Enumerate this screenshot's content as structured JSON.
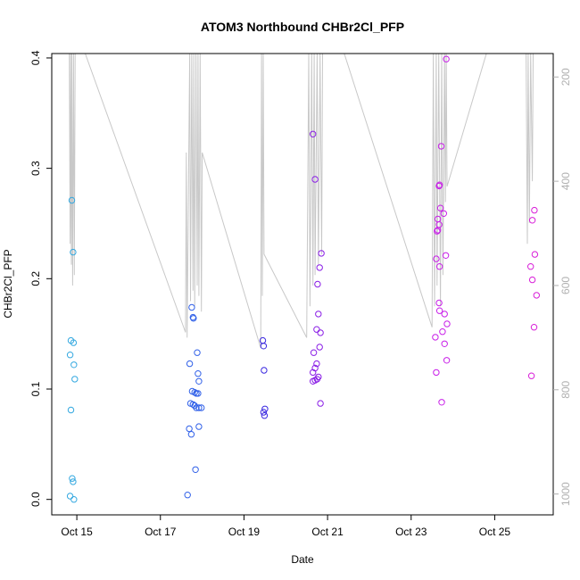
{
  "chart_data": {
    "type": "scatter",
    "title": "ATOM3 Northbound CHBr2Cl_PFP",
    "xlabel": "Date",
    "ylabel": "CHBr2Cl_PFP",
    "x_ticks": [
      {
        "value": 14.8,
        "label": "Oct 15"
      },
      {
        "value": 16.8,
        "label": "Oct 17"
      },
      {
        "value": 18.8,
        "label": "Oct 19"
      },
      {
        "value": 20.8,
        "label": "Oct 21"
      },
      {
        "value": 22.8,
        "label": "Oct 23"
      },
      {
        "value": 24.8,
        "label": "Oct 25"
      }
    ],
    "xlim": [
      14.2,
      26.2
    ],
    "ylim": [
      -0.014,
      0.404
    ],
    "y_ticks": [
      0.0,
      0.1,
      0.2,
      0.3,
      0.4
    ],
    "y_tick_labels": [
      "0.0",
      "0.1",
      "0.2",
      "0.3",
      "0.4"
    ],
    "right_axis": {
      "lim": [
        1040,
        155
      ],
      "ticks": [
        200,
        400,
        600,
        800,
        1000
      ],
      "tick_labels": [
        "200",
        "400",
        "600",
        "800",
        "1000"
      ],
      "color": "#b0b0b0"
    },
    "series": [
      {
        "color": "#33a8e0",
        "points": [
          [
            14.68,
            0.271
          ],
          [
            14.71,
            0.224
          ],
          [
            14.66,
            0.144
          ],
          [
            14.72,
            0.142
          ],
          [
            14.64,
            0.131
          ],
          [
            14.73,
            0.122
          ],
          [
            14.75,
            0.109
          ],
          [
            14.66,
            0.081
          ],
          [
            14.69,
            0.019
          ],
          [
            14.71,
            0.016
          ],
          [
            14.64,
            0.003
          ],
          [
            14.73,
            0.0
          ]
        ]
      },
      {
        "color": "#3060e8",
        "points": [
          [
            17.55,
            0.174
          ],
          [
            17.58,
            0.165
          ],
          [
            17.59,
            0.164
          ],
          [
            17.68,
            0.133
          ],
          [
            17.5,
            0.123
          ],
          [
            17.7,
            0.114
          ],
          [
            17.72,
            0.107
          ],
          [
            17.56,
            0.098
          ],
          [
            17.62,
            0.097
          ],
          [
            17.66,
            0.096
          ],
          [
            17.7,
            0.096
          ],
          [
            17.52,
            0.087
          ],
          [
            17.58,
            0.086
          ],
          [
            17.62,
            0.085
          ],
          [
            17.66,
            0.083
          ],
          [
            17.72,
            0.083
          ],
          [
            17.78,
            0.083
          ],
          [
            17.72,
            0.066
          ],
          [
            17.49,
            0.064
          ],
          [
            17.54,
            0.059
          ],
          [
            17.64,
            0.027
          ],
          [
            17.45,
            0.004
          ]
        ]
      },
      {
        "color": "#3a28e0",
        "points": [
          [
            19.25,
            0.144
          ],
          [
            19.27,
            0.139
          ],
          [
            19.28,
            0.117
          ],
          [
            19.3,
            0.082
          ],
          [
            19.27,
            0.079
          ],
          [
            19.29,
            0.076
          ]
        ]
      },
      {
        "color": "#8a1ee6",
        "points": [
          [
            20.45,
            0.331
          ],
          [
            20.5,
            0.29
          ],
          [
            20.65,
            0.223
          ],
          [
            20.61,
            0.21
          ],
          [
            20.56,
            0.195
          ],
          [
            20.58,
            0.168
          ],
          [
            20.54,
            0.154
          ],
          [
            20.63,
            0.151
          ],
          [
            20.61,
            0.138
          ],
          [
            20.47,
            0.133
          ],
          [
            20.54,
            0.123
          ],
          [
            20.5,
            0.119
          ],
          [
            20.45,
            0.115
          ],
          [
            20.58,
            0.111
          ],
          [
            20.55,
            0.109
          ],
          [
            20.5,
            0.108
          ],
          [
            20.45,
            0.107
          ],
          [
            20.63,
            0.087
          ]
        ]
      },
      {
        "color": "#c81ee8",
        "points": [
          [
            23.64,
            0.399
          ],
          [
            23.52,
            0.32
          ],
          [
            23.48,
            0.285
          ],
          [
            23.47,
            0.284
          ],
          [
            23.5,
            0.264
          ],
          [
            23.58,
            0.259
          ],
          [
            23.44,
            0.254
          ],
          [
            23.63,
            0.221
          ],
          [
            23.47,
            0.249
          ],
          [
            23.42,
            0.243
          ],
          [
            23.44,
            0.244
          ],
          [
            23.4,
            0.218
          ],
          [
            23.48,
            0.211
          ],
          [
            23.47,
            0.178
          ],
          [
            23.48,
            0.171
          ],
          [
            23.6,
            0.168
          ],
          [
            23.66,
            0.159
          ],
          [
            23.55,
            0.152
          ],
          [
            23.38,
            0.147
          ],
          [
            23.6,
            0.141
          ],
          [
            23.65,
            0.126
          ],
          [
            23.4,
            0.115
          ],
          [
            23.53,
            0.088
          ]
        ]
      },
      {
        "color": "#d81ed8",
        "points": [
          [
            25.75,
            0.262
          ],
          [
            25.7,
            0.253
          ],
          [
            25.76,
            0.222
          ],
          [
            25.66,
            0.211
          ],
          [
            25.7,
            0.199
          ],
          [
            25.8,
            0.185
          ],
          [
            25.74,
            0.156
          ],
          [
            25.68,
            0.112
          ]
        ]
      }
    ],
    "altitude_trace": {
      "color": "#c8c8c8",
      "points": [
        [
          14.62,
          155
        ],
        [
          14.64,
          520
        ],
        [
          14.65,
          155
        ],
        [
          14.67,
          560
        ],
        [
          14.68,
          155
        ],
        [
          14.7,
          600
        ],
        [
          14.72,
          155
        ],
        [
          14.74,
          580
        ],
        [
          14.76,
          155
        ],
        [
          15.0,
          155
        ],
        [
          17.4,
          690
        ],
        [
          17.42,
          345
        ],
        [
          17.44,
          700
        ],
        [
          17.5,
          155
        ],
        [
          17.52,
          630
        ],
        [
          17.55,
          155
        ],
        [
          17.58,
          610
        ],
        [
          17.6,
          155
        ],
        [
          17.62,
          640
        ],
        [
          17.65,
          155
        ],
        [
          17.68,
          600
        ],
        [
          17.7,
          155
        ],
        [
          17.72,
          620
        ],
        [
          17.75,
          155
        ],
        [
          17.78,
          650
        ],
        [
          17.8,
          345
        ],
        [
          19.2,
          720
        ],
        [
          19.22,
          155
        ],
        [
          19.24,
          620
        ],
        [
          19.26,
          155
        ],
        [
          19.28,
          540
        ],
        [
          20.3,
          700
        ],
        [
          20.35,
          155
        ],
        [
          20.38,
          640
        ],
        [
          20.42,
          155
        ],
        [
          20.45,
          600
        ],
        [
          20.48,
          155
        ],
        [
          20.5,
          580
        ],
        [
          20.55,
          155
        ],
        [
          20.58,
          560
        ],
        [
          20.62,
          155
        ],
        [
          20.66,
          540
        ],
        [
          20.68,
          155
        ],
        [
          21.2,
          155
        ],
        [
          23.3,
          680
        ],
        [
          23.33,
          155
        ],
        [
          23.36,
          640
        ],
        [
          23.4,
          155
        ],
        [
          23.42,
          600
        ],
        [
          23.46,
          155
        ],
        [
          23.5,
          640
        ],
        [
          23.53,
          155
        ],
        [
          23.56,
          580
        ],
        [
          23.6,
          155
        ],
        [
          23.62,
          440
        ],
        [
          23.64,
          155
        ],
        [
          23.66,
          410
        ],
        [
          24.6,
          155
        ],
        [
          25.55,
          155
        ],
        [
          25.58,
          520
        ],
        [
          25.6,
          155
        ],
        [
          25.63,
          480
        ],
        [
          25.66,
          155
        ],
        [
          25.7,
          400
        ],
        [
          25.72,
          155
        ]
      ]
    }
  }
}
